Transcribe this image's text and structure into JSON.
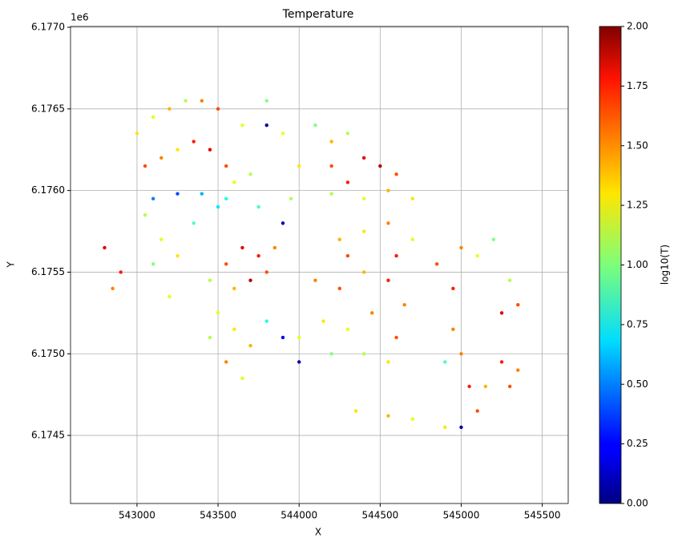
{
  "chart_data": {
    "type": "scatter",
    "title": "Temperature",
    "x_label": "X",
    "y_label": "Y",
    "y_offset_label": "1e6",
    "colorbar_label": "log10(T)",
    "colormap": "jet",
    "grid": true,
    "xlim": [
      542590,
      545660
    ],
    "ylim": [
      6174083,
      6177005
    ],
    "xticks": [
      543000,
      543500,
      544000,
      544500,
      545000,
      545500
    ],
    "yticks": [
      {
        "value": 6174500,
        "label": "6.1745"
      },
      {
        "value": 6175000,
        "label": "6.1750"
      },
      {
        "value": 6175500,
        "label": "6.1755"
      },
      {
        "value": 6176000,
        "label": "6.1760"
      },
      {
        "value": 6176500,
        "label": "6.1765"
      },
      {
        "value": 6177000,
        "label": "6.1770"
      }
    ],
    "clim": [
      0,
      2
    ],
    "cticks": [
      {
        "value": 0,
        "label": "0.00"
      },
      {
        "value": 0.25,
        "label": "0.25"
      },
      {
        "value": 0.5,
        "label": "0.50"
      },
      {
        "value": 0.75,
        "label": "0.75"
      },
      {
        "value": 1,
        "label": "1.00"
      },
      {
        "value": 1.25,
        "label": "1.25"
      },
      {
        "value": 1.5,
        "label": "1.50"
      },
      {
        "value": 1.75,
        "label": "1.75"
      },
      {
        "value": 2,
        "label": "2.00"
      }
    ],
    "x": [
      543000,
      543100,
      543200,
      543300,
      543400,
      543500,
      543050,
      543150,
      543250,
      543350,
      543450,
      543550,
      543100,
      543250,
      543400,
      543550,
      543600,
      543500,
      543650,
      543700,
      543750,
      543800,
      543800,
      543900,
      544000,
      543950,
      543900,
      544100,
      544200,
      544300,
      544200,
      544300,
      544400,
      544500,
      544600,
      544700,
      544200,
      544400,
      544550,
      542800,
      542900,
      542850,
      543050,
      543150,
      543250,
      543350,
      543100,
      543200,
      543450,
      543550,
      543650,
      543750,
      543850,
      543600,
      543700,
      543800,
      543500,
      543600,
      543700,
      543550,
      543650,
      543800,
      543900,
      543450,
      544250,
      544400,
      544550,
      544700,
      544300,
      544600,
      544100,
      544250,
      544400,
      544550,
      544650,
      544150,
      544300,
      544450,
      544600,
      544200,
      544400,
      544550,
      544000,
      544000,
      544350,
      544550,
      544700,
      544850,
      544950,
      545000,
      545100,
      545200,
      545300,
      545350,
      545250,
      544950,
      545250,
      545350,
      545300,
      544900,
      545000,
      545050,
      545100,
      545150,
      545000,
      544900
    ],
    "y": [
      6176350,
      6176450,
      6176500,
      6176550,
      6176550,
      6176500,
      6176150,
      6176200,
      6176250,
      6176300,
      6176250,
      6176150,
      6175950,
      6175980,
      6175980,
      6175950,
      6176050,
      6175900,
      6176400,
      6176100,
      6175900,
      6176400,
      6176550,
      6176350,
      6176150,
      6175950,
      6175800,
      6176400,
      6176300,
      6176350,
      6176150,
      6176050,
      6176200,
      6176150,
      6176100,
      6175950,
      6175980,
      6175950,
      6176000,
      6175650,
      6175500,
      6175400,
      6175850,
      6175700,
      6175600,
      6175800,
      6175550,
      6175350,
      6175450,
      6175550,
      6175650,
      6175600,
      6175650,
      6175400,
      6175450,
      6175500,
      6175250,
      6175150,
      6175050,
      6174950,
      6174850,
      6175200,
      6175100,
      6175100,
      6175700,
      6175750,
      6175800,
      6175700,
      6175600,
      6175600,
      6175450,
      6175400,
      6175500,
      6175450,
      6175300,
      6175200,
      6175150,
      6175250,
      6175100,
      6175000,
      6175000,
      6174950,
      6174950,
      6175100,
      6174650,
      6174620,
      6174600,
      6175550,
      6175400,
      6175650,
      6175600,
      6175700,
      6175450,
      6175300,
      6175250,
      6175150,
      6174950,
      6174900,
      6174800,
      6174950,
      6175000,
      6174800,
      6174650,
      6174800,
      6174550,
      6174550
    ],
    "c": [
      1.3,
      1.2,
      1.4,
      1.1,
      1.5,
      1.6,
      1.6,
      1.5,
      1.3,
      1.7,
      1.8,
      1.6,
      0.5,
      0.4,
      0.6,
      0.8,
      1.2,
      0.7,
      1.2,
      1.1,
      0.9,
      0.1,
      1.0,
      1.2,
      1.3,
      1.1,
      0.1,
      1.0,
      1.4,
      1.1,
      1.6,
      1.7,
      1.8,
      1.9,
      1.6,
      1.3,
      1.1,
      1.2,
      1.4,
      1.8,
      1.7,
      1.5,
      1.1,
      1.2,
      1.3,
      0.9,
      1.0,
      1.2,
      1.1,
      1.6,
      1.8,
      1.7,
      1.5,
      1.4,
      1.9,
      1.6,
      1.2,
      1.3,
      1.4,
      1.5,
      1.2,
      0.8,
      0.2,
      1.1,
      1.4,
      1.3,
      1.5,
      1.2,
      1.6,
      1.7,
      1.5,
      1.6,
      1.4,
      1.7,
      1.5,
      1.3,
      1.2,
      1.5,
      1.6,
      1.0,
      1.1,
      1.3,
      0.1,
      1.2,
      1.3,
      1.4,
      1.2,
      1.6,
      1.7,
      1.5,
      1.2,
      1.0,
      1.1,
      1.6,
      1.8,
      1.5,
      1.7,
      1.5,
      1.6,
      0.9,
      1.5,
      1.7,
      1.6,
      1.4,
      0.1,
      1.3
    ]
  }
}
